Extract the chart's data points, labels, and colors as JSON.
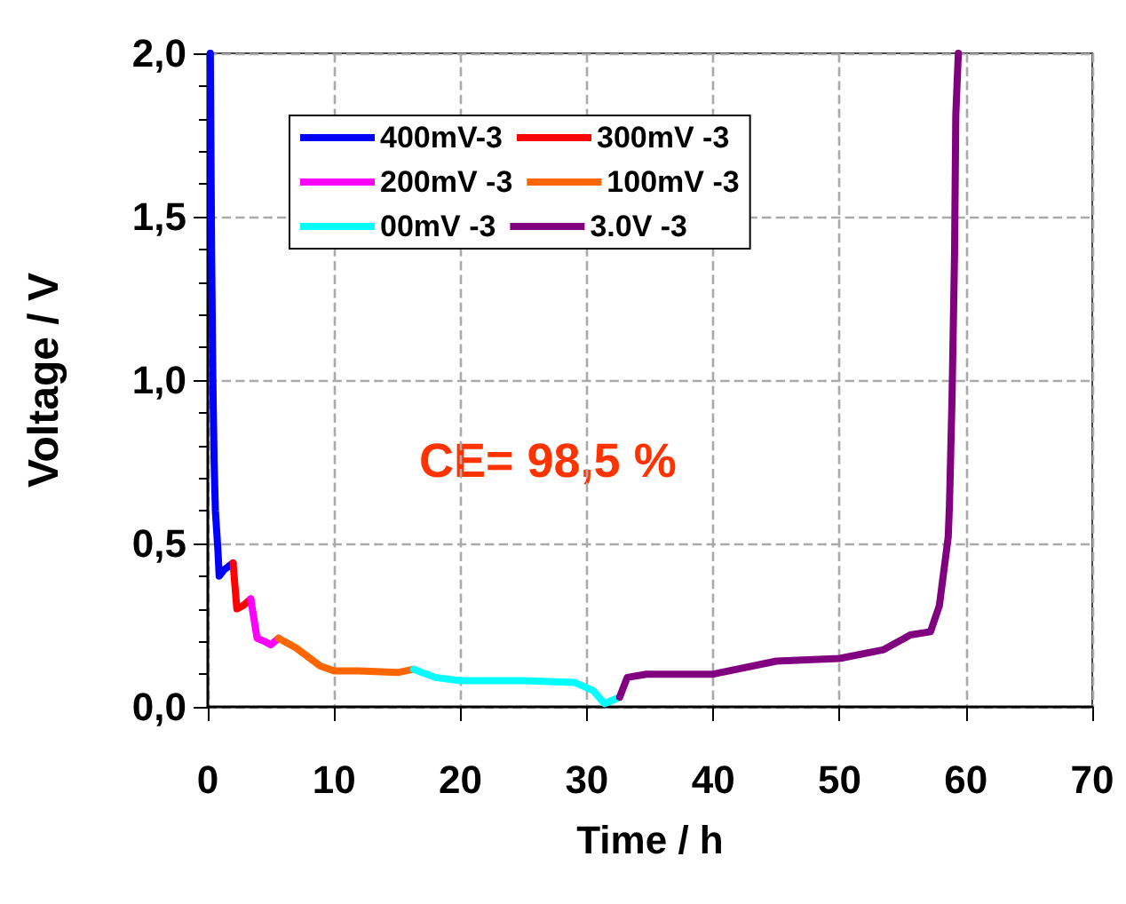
{
  "chart_data": {
    "type": "line",
    "xlabel": "Time / h",
    "ylabel": "Voltage / V",
    "xlim": [
      0,
      70
    ],
    "xticks": [
      0,
      10,
      20,
      30,
      40,
      50,
      60,
      70
    ],
    "ylim": [
      0,
      2
    ],
    "yticks": [
      {
        "value": 0,
        "label": "0,0"
      },
      {
        "value": 0.5,
        "label": "0,5"
      },
      {
        "value": 1,
        "label": "1,0"
      },
      {
        "value": 1.5,
        "label": "1,5"
      },
      {
        "value": 2,
        "label": "2,0"
      }
    ],
    "grid": true,
    "legend": "top left",
    "marker": "none",
    "line_style": "solid",
    "annotations": [
      "CE= 98,5 %"
    ],
    "series": [
      {
        "name": "400mV-3",
        "color": "#0000ff",
        "x": [
          0.2,
          0.3,
          0.4,
          0.5,
          0.6,
          0.8,
          0.9,
          1.3,
          2.0
        ],
        "values": [
          2.0,
          1.4,
          1.0,
          0.75,
          0.6,
          0.48,
          0.4,
          0.42,
          0.44
        ]
      },
      {
        "name": "300mV -3",
        "color": "#ff0000",
        "x": [
          2.0,
          2.3,
          2.8,
          3.4
        ],
        "values": [
          0.44,
          0.3,
          0.31,
          0.33
        ]
      },
      {
        "name": "200mV -3",
        "color": "#ff00ff",
        "x": [
          3.4,
          3.9,
          4.5,
          5.0,
          5.6
        ],
        "values": [
          0.33,
          0.21,
          0.2,
          0.19,
          0.21
        ]
      },
      {
        "name": "100mV -3",
        "color": "#ff6600",
        "x": [
          5.6,
          7.0,
          8.9,
          10.0,
          12.0,
          15.0,
          16.3
        ],
        "values": [
          0.21,
          0.18,
          0.125,
          0.11,
          0.11,
          0.105,
          0.115
        ]
      },
      {
        "name": "00mV -3",
        "color": "#00ffff",
        "x": [
          16.3,
          18.0,
          20.0,
          25.0,
          29.0,
          30.5,
          31.4,
          32.6
        ],
        "values": [
          0.115,
          0.09,
          0.08,
          0.08,
          0.075,
          0.05,
          0.01,
          0.03
        ]
      },
      {
        "name": "3.0V -3",
        "color": "#800080",
        "x": [
          32.6,
          33.2,
          34.7,
          40.0,
          45.0,
          50.0,
          53.5,
          55.6,
          57.2,
          57.9,
          58.6,
          58.7,
          58.9,
          59.1,
          59.2,
          59.4
        ],
        "values": [
          0.03,
          0.09,
          0.1,
          0.1,
          0.14,
          0.148,
          0.175,
          0.22,
          0.23,
          0.31,
          0.52,
          0.62,
          0.94,
          1.38,
          1.81,
          2.0
        ]
      }
    ]
  }
}
